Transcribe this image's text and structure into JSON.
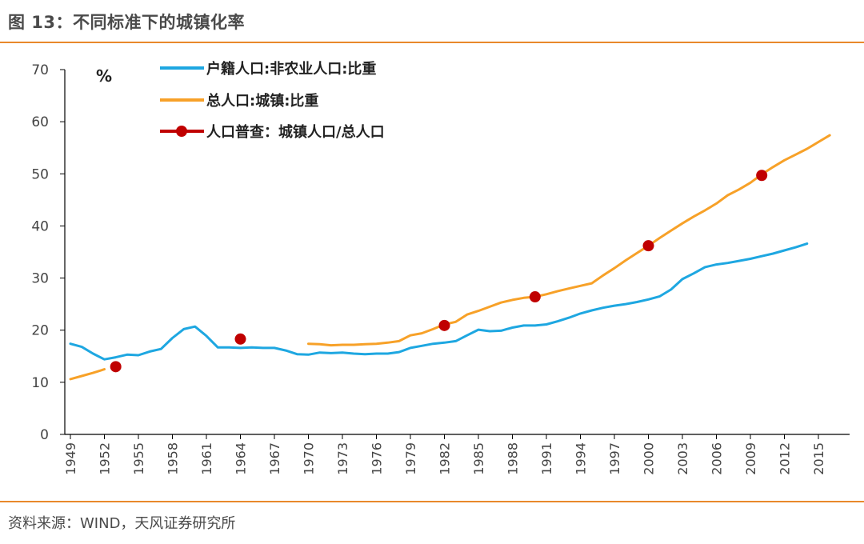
{
  "figure": {
    "title": "图 13：不同标准下的城镇化率",
    "source": "资料来源：WIND，天风证券研究所"
  },
  "chart_data": {
    "type": "line",
    "ylabel": "%",
    "ylim": [
      0,
      70
    ],
    "yticks": [
      0,
      10,
      20,
      30,
      40,
      50,
      60,
      70
    ],
    "xlim": [
      1949,
      2016
    ],
    "xticks": [
      1949,
      1952,
      1955,
      1958,
      1961,
      1964,
      1967,
      1970,
      1973,
      1976,
      1979,
      1982,
      1985,
      1988,
      1991,
      1994,
      1997,
      2000,
      2003,
      2006,
      2009,
      2012,
      2015
    ],
    "legend_position": "top-left",
    "series": [
      {
        "name": "户籍人口:非农业人口:比重",
        "style": "line",
        "color": "#1ea7e1",
        "x": [
          1949,
          1950,
          1951,
          1952,
          1953,
          1954,
          1955,
          1956,
          1957,
          1958,
          1959,
          1960,
          1961,
          1962,
          1963,
          1964,
          1965,
          1966,
          1967,
          1968,
          1969,
          1970,
          1971,
          1972,
          1973,
          1974,
          1975,
          1976,
          1977,
          1978,
          1979,
          1980,
          1981,
          1982,
          1983,
          1984,
          1985,
          1986,
          1987,
          1988,
          1989,
          1990,
          1991,
          1992,
          1993,
          1994,
          1995,
          1996,
          1997,
          1998,
          1999,
          2000,
          2001,
          2002,
          2003,
          2004,
          2005,
          2006,
          2007,
          2008,
          2009,
          2010,
          2011,
          2012,
          2013,
          2014
        ],
        "y": [
          17.4,
          16.8,
          15.5,
          14.4,
          14.8,
          15.3,
          15.2,
          15.9,
          16.4,
          18.5,
          20.2,
          20.7,
          18.9,
          16.7,
          16.7,
          16.6,
          16.7,
          16.6,
          16.6,
          16.1,
          15.4,
          15.3,
          15.7,
          15.6,
          15.7,
          15.5,
          15.4,
          15.5,
          15.5,
          15.8,
          16.6,
          17.0,
          17.4,
          17.6,
          17.9,
          19.0,
          20.1,
          19.8,
          19.9,
          20.5,
          20.9,
          20.9,
          21.1,
          21.7,
          22.4,
          23.2,
          23.8,
          24.3,
          24.7,
          25.0,
          25.4,
          25.9,
          26.5,
          27.8,
          29.8,
          30.9,
          32.1,
          32.6,
          32.9,
          33.3,
          33.7,
          34.2,
          34.7,
          35.3,
          35.9,
          36.6
        ]
      },
      {
        "name": "总人口:城镇:比重",
        "style": "line",
        "color": "#f7a128",
        "segments": [
          {
            "x": [
              1949,
              1950,
              1951,
              1952
            ],
            "y": [
              10.6,
              11.2,
              11.8,
              12.5
            ]
          },
          {
            "x": [
              1970,
              1971,
              1972,
              1973,
              1974,
              1975,
              1976,
              1977,
              1978,
              1979,
              1980,
              1981,
              1982,
              1983,
              1984,
              1985,
              1986,
              1987,
              1988,
              1989,
              1990,
              1991,
              1992,
              1993,
              1994,
              1995,
              1996,
              1997,
              1998,
              1999,
              2000,
              2001,
              2002,
              2003,
              2004,
              2005,
              2006,
              2007,
              2008,
              2009,
              2010,
              2011,
              2012,
              2013,
              2014,
              2015,
              2016
            ],
            "y": [
              17.4,
              17.3,
              17.1,
              17.2,
              17.2,
              17.3,
              17.4,
              17.6,
              17.9,
              19.0,
              19.4,
              20.2,
              21.1,
              21.6,
              23.0,
              23.7,
              24.5,
              25.3,
              25.8,
              26.2,
              26.4,
              26.9,
              27.5,
              28.0,
              28.5,
              29.0,
              30.5,
              31.9,
              33.4,
              34.8,
              36.2,
              37.7,
              39.1,
              40.5,
              41.8,
              43.0,
              44.3,
              45.9,
              47.0,
              48.3,
              49.9,
              51.3,
              52.6,
              53.7,
              54.8,
              56.1,
              57.4
            ]
          }
        ]
      },
      {
        "name": "人口普查：城镇人口/总人口",
        "style": "marker",
        "color": "#c00000",
        "x": [
          1953,
          1964,
          1982,
          1990,
          2000,
          2010
        ],
        "y": [
          13.0,
          18.3,
          20.9,
          26.4,
          36.2,
          49.7
        ]
      }
    ]
  }
}
